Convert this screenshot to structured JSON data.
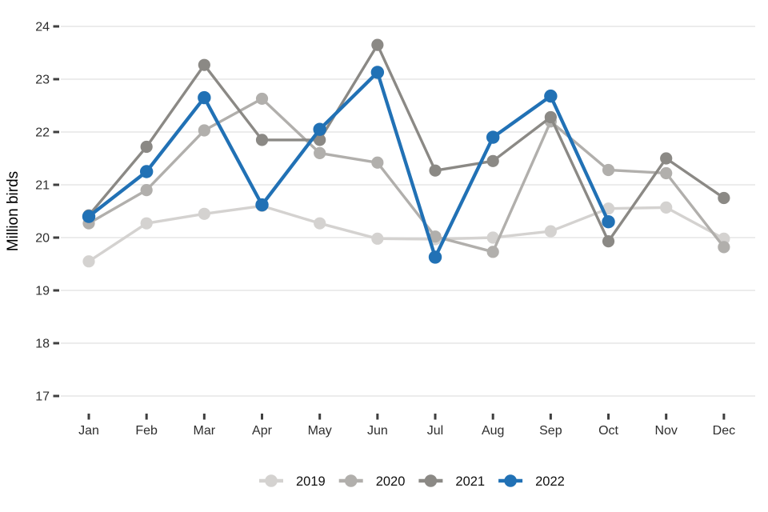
{
  "chart_data": {
    "type": "line",
    "title": "",
    "xlabel": "",
    "ylabel": "Million birds",
    "categories": [
      "Jan",
      "Feb",
      "Mar",
      "Apr",
      "May",
      "Jun",
      "Jul",
      "Aug",
      "Sep",
      "Oct",
      "Nov",
      "Dec"
    ],
    "y_ticks": [
      24,
      23,
      22,
      21,
      20,
      19,
      18,
      17
    ],
    "ylim": [
      16.75,
      24.15
    ],
    "grid": "horizontal",
    "legend_position": "bottom",
    "series": [
      {
        "name": "2019",
        "color": "#d4d2d0",
        "values": [
          19.55,
          20.27,
          20.45,
          20.6,
          20.27,
          19.98,
          19.97,
          20.0,
          20.12,
          20.55,
          20.57,
          19.98
        ]
      },
      {
        "name": "2020",
        "color": "#b1afac",
        "values": [
          20.27,
          20.9,
          22.03,
          22.63,
          21.6,
          21.42,
          20.02,
          19.73,
          22.2,
          21.28,
          21.22,
          19.82
        ]
      },
      {
        "name": "2021",
        "color": "#8b8985",
        "values": [
          20.42,
          21.72,
          23.27,
          21.85,
          21.85,
          23.65,
          21.27,
          21.45,
          22.28,
          19.93,
          21.5,
          20.75
        ]
      },
      {
        "name": "2022",
        "color": "#2171b5",
        "values": [
          20.4,
          21.25,
          22.65,
          20.62,
          22.05,
          23.13,
          19.63,
          21.9,
          22.68,
          20.3,
          null,
          null
        ]
      }
    ]
  },
  "style": {
    "grid_color": "#ececec",
    "tick_color": "#3f3f3f",
    "label_color": "#2e2e2e",
    "background": "#ffffff"
  }
}
